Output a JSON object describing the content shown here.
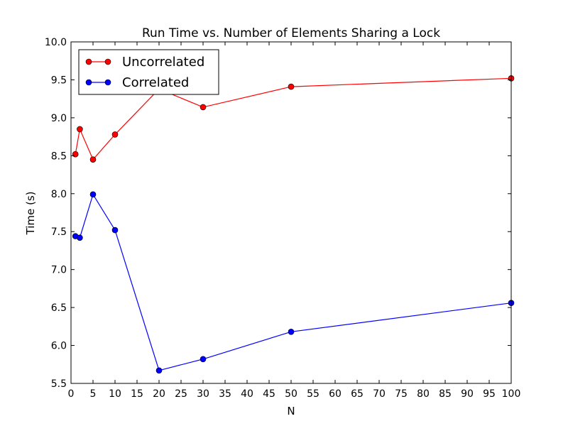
{
  "chart_data": {
    "type": "line",
    "title": "Run Time vs. Number of Elements Sharing a Lock",
    "xlabel": "N",
    "ylabel": "Time (s)",
    "xlim": [
      0,
      100
    ],
    "ylim": [
      5.5,
      10.0
    ],
    "xticks": [
      0,
      5,
      10,
      15,
      20,
      25,
      30,
      35,
      40,
      45,
      50,
      55,
      60,
      65,
      70,
      75,
      80,
      85,
      90,
      95,
      100
    ],
    "yticks": [
      5.5,
      6.0,
      6.5,
      7.0,
      7.5,
      8.0,
      8.5,
      9.0,
      9.5,
      10.0
    ],
    "grid": false,
    "legend_position": "top-left",
    "series": [
      {
        "name": "Uncorrelated",
        "color": "#ff0000",
        "marker_color": "#ff0000",
        "x": [
          1,
          2,
          5,
          10,
          20,
          30,
          50,
          100
        ],
        "values": [
          8.52,
          8.85,
          8.45,
          8.78,
          9.38,
          9.14,
          9.41,
          9.52
        ]
      },
      {
        "name": "Correlated",
        "color": "#0000ff",
        "marker_color": "#0000ff",
        "x": [
          1,
          2,
          5,
          10,
          20,
          30,
          50,
          100
        ],
        "values": [
          7.44,
          7.42,
          7.99,
          7.52,
          5.67,
          5.82,
          6.18,
          6.56
        ]
      }
    ]
  }
}
